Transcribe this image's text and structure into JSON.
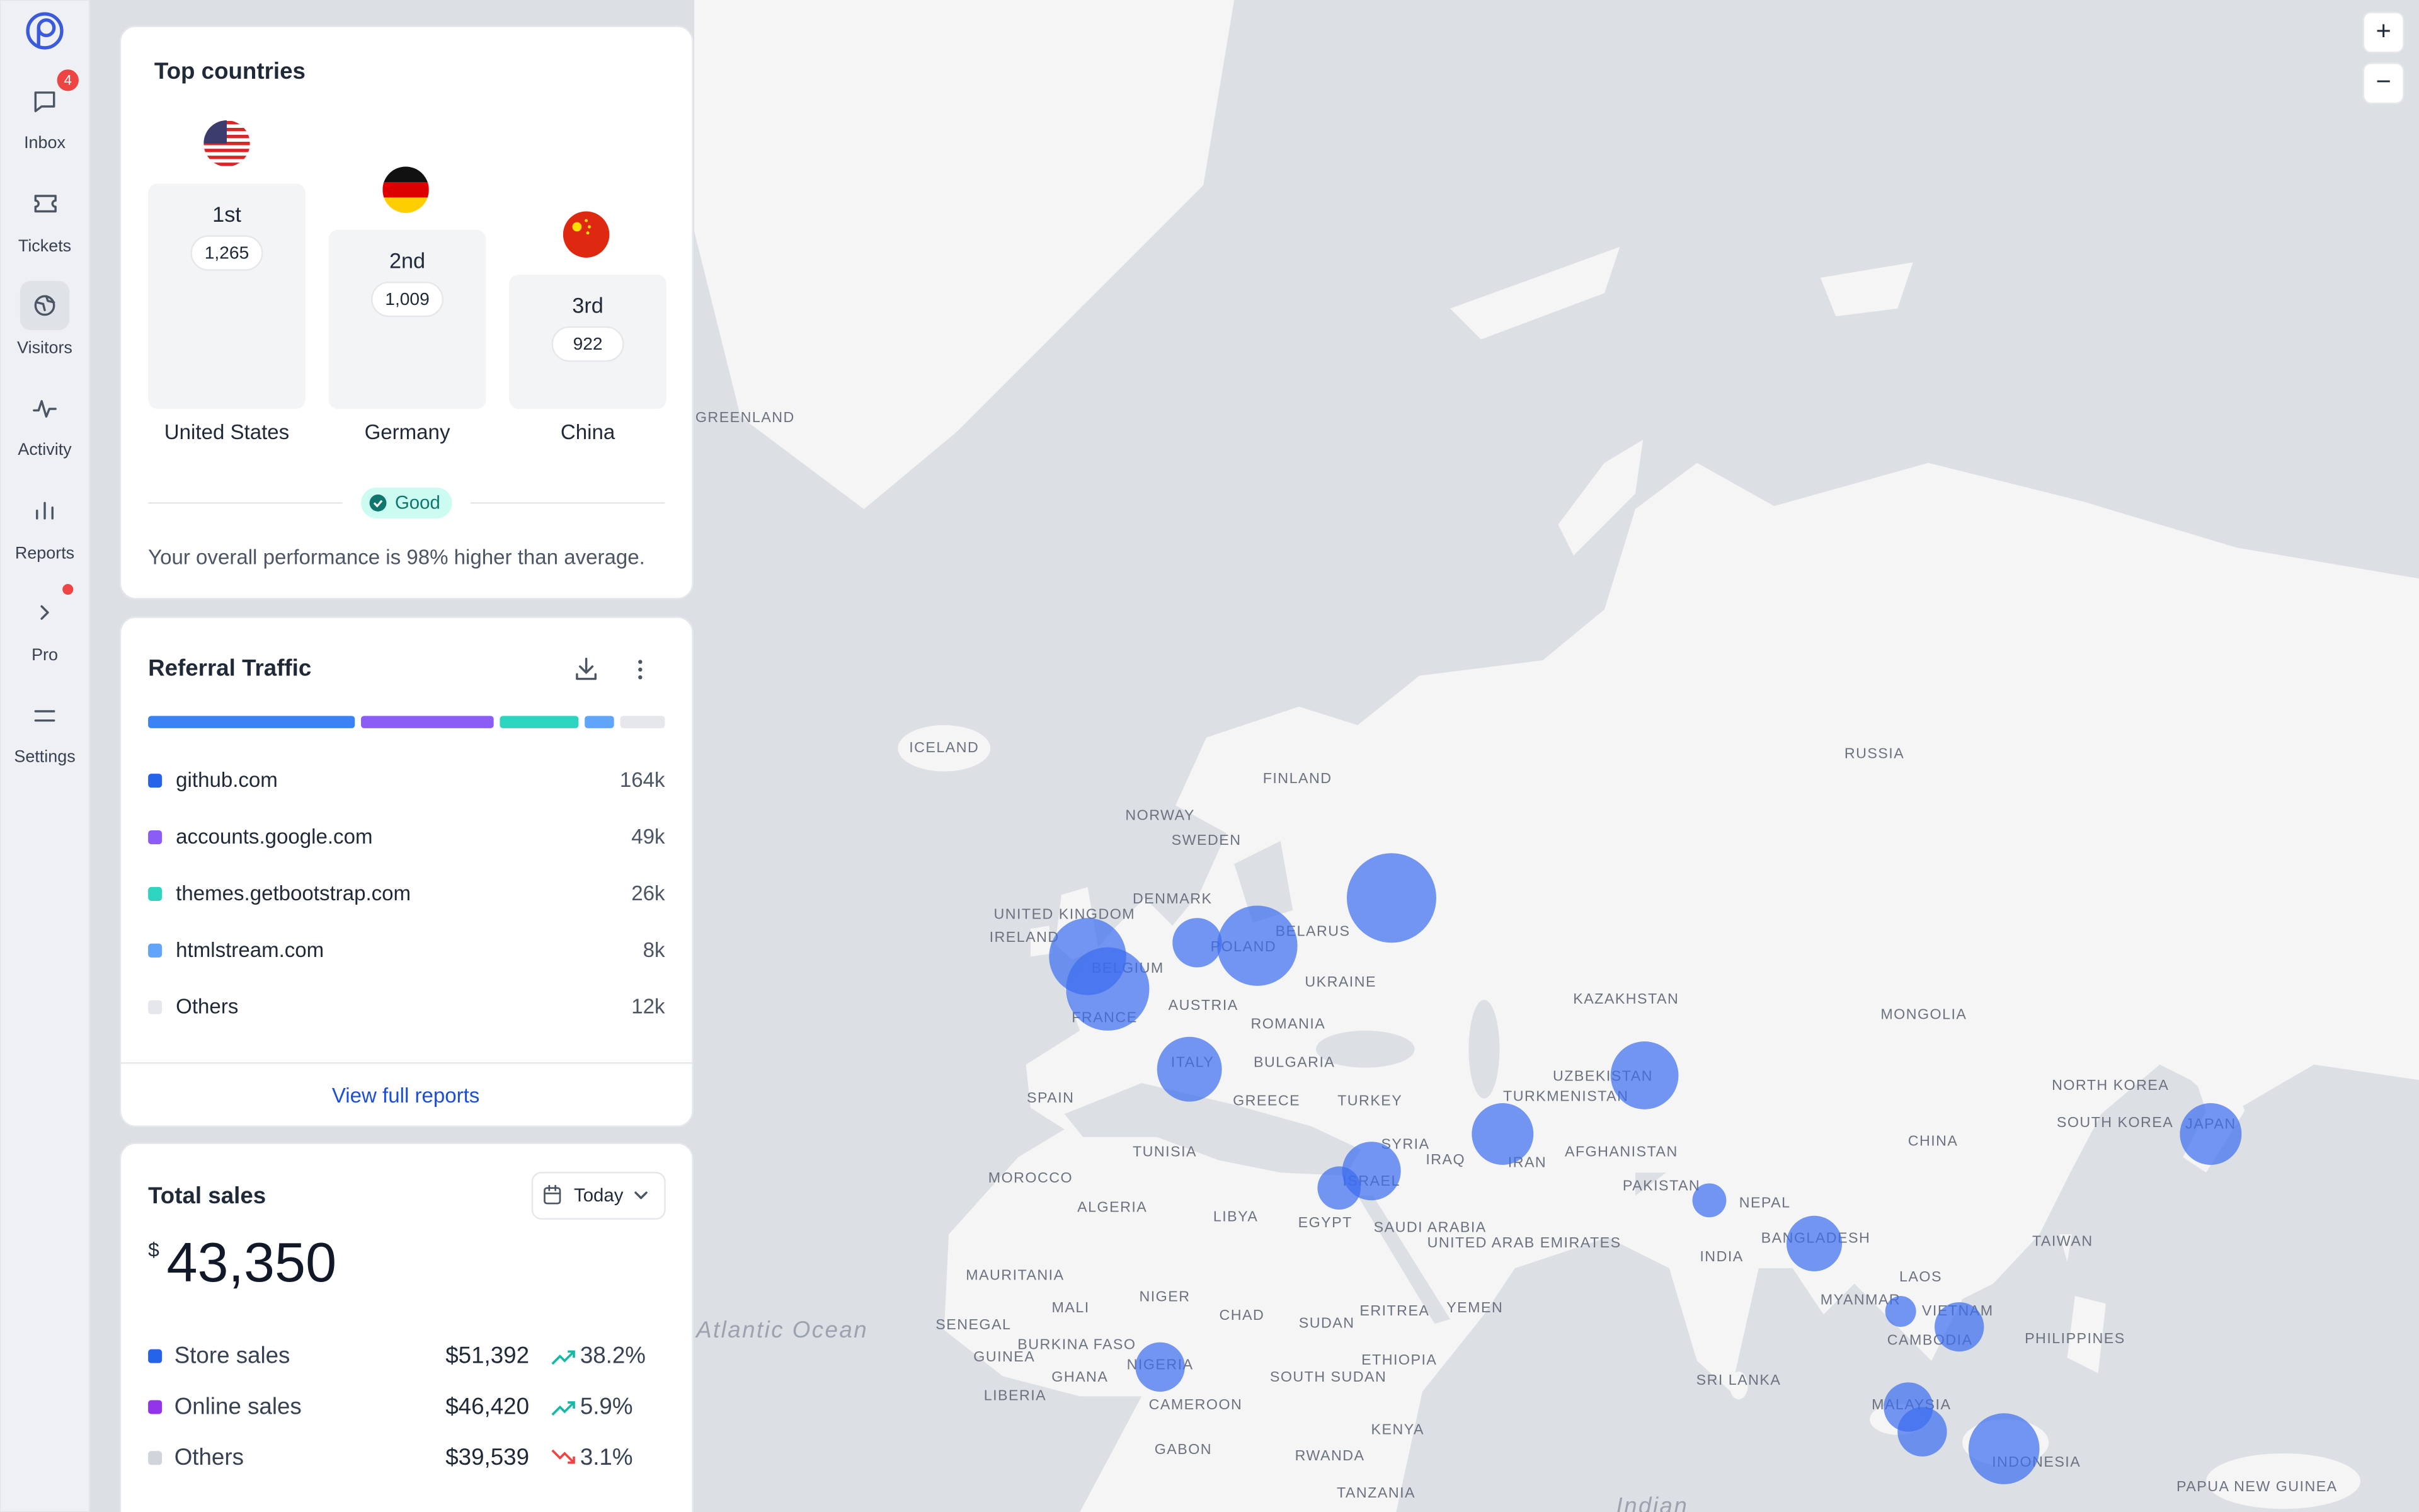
{
  "sidebar": {
    "badge": "4",
    "items": [
      "Inbox",
      "Tickets",
      "Visitors",
      "Activity",
      "Reports",
      "Pro",
      "Settings"
    ]
  },
  "top_countries": {
    "title": "Top countries",
    "ranks": [
      {
        "rank": "1st",
        "count": "1,265",
        "country": "United States"
      },
      {
        "rank": "2nd",
        "count": "1,009",
        "country": "Germany"
      },
      {
        "rank": "3rd",
        "count": "922",
        "country": "China"
      }
    ],
    "status": "Good",
    "message": "Your overall performance is 98% higher than average."
  },
  "referral": {
    "title": "Referral Traffic",
    "sources": [
      {
        "name": "github.com",
        "value": "164k",
        "color": "#2563eb"
      },
      {
        "name": "accounts.google.com",
        "value": "49k",
        "color": "#8b5cf6"
      },
      {
        "name": "themes.getbootstrap.com",
        "value": "26k",
        "color": "#2dd4bf"
      },
      {
        "name": "htmlstream.com",
        "value": "8k",
        "color": "#60a5fa"
      },
      {
        "name": "Others",
        "value": "12k",
        "color": "#e5e7eb"
      }
    ],
    "link": "View full reports"
  },
  "sales": {
    "title": "Total sales",
    "period": "Today",
    "currency": "$",
    "total": "43,350",
    "rows": [
      {
        "name": "Store sales",
        "color": "#2563eb",
        "amount": "$51,392",
        "change": "38.2%",
        "trend": "up"
      },
      {
        "name": "Online sales",
        "color": "#9333ea",
        "amount": "$46,420",
        "change": "5.9%",
        "trend": "up"
      },
      {
        "name": "Others",
        "color": "#d1d5db",
        "amount": "$39,539",
        "change": "3.1%",
        "trend": "down"
      }
    ]
  },
  "map": {
    "zoom": [
      "+",
      "−"
    ],
    "labels": [
      "GREENLAND",
      "ICELAND",
      "NORWAY",
      "SWEDEN",
      "FINLAND",
      "RUSSIA",
      "UNITED KINGDOM",
      "IRELAND",
      "DENMARK",
      "BELARUS",
      "POLAND",
      "BELGIUM",
      "FRANCE",
      "AUSTRIA",
      "UKRAINE",
      "ROMANIA",
      "BULGARIA",
      "ITALY",
      "SPAIN",
      "GREECE",
      "TURKEY",
      "KAZAKHSTAN",
      "MONGOLIA",
      "UZBEKISTAN",
      "TURKMENISTAN",
      "NORTH KOREA",
      "SOUTH KOREA",
      "JAPAN",
      "CHINA",
      "TUNISIA",
      "MOROCCO",
      "ALGERIA",
      "LIBYA",
      "EGYPT",
      "SYRIA",
      "ISRAEL",
      "IRAQ",
      "IRAN",
      "AFGHANISTAN",
      "PAKISTAN",
      "NEPAL",
      "SAUDI ARABIA",
      "UNITED ARAB EMIRATES",
      "INDIA",
      "BANGLADESH",
      "TAIWAN",
      "LAOS",
      "MYANMAR",
      "VIETNAM",
      "CAMBODIA",
      "PHILIPPINES",
      "MAURITANIA",
      "MALI",
      "NIGER",
      "CHAD",
      "SUDAN",
      "ERITREA",
      "YEMEN",
      "SENEGAL",
      "GUINEA",
      "BURKINA FASO",
      "GHANA",
      "NIGERIA",
      "SOUTH SUDAN",
      "ETHIOPIA",
      "SRI LANKA",
      "MALAYSIA",
      "INDONESIA",
      "LIBERIA",
      "CAMEROON",
      "GABON",
      "RWANDA",
      "KENYA",
      "TANZANIA",
      "PAPUA NEW GUINEA",
      "Atlantic Ocean",
      "Indian"
    ]
  }
}
